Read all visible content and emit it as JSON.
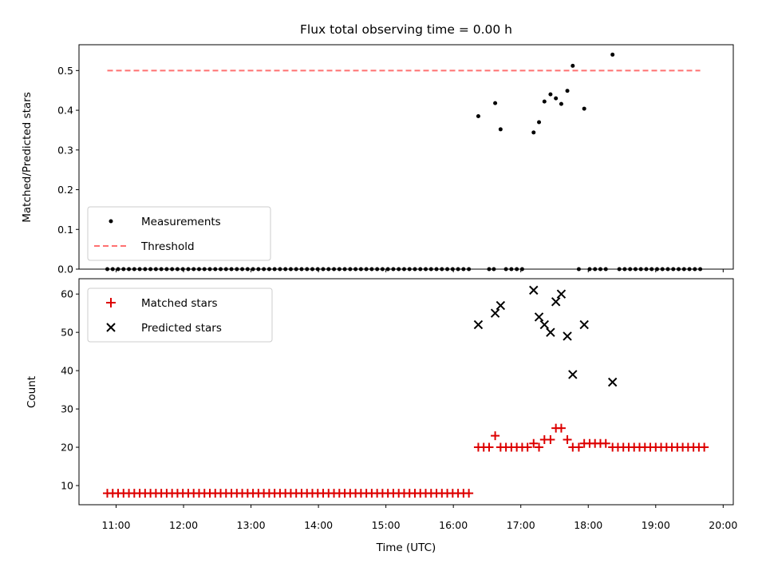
{
  "figure": {
    "title": "Flux total observing time = 0.00 h",
    "xlabel": "Time (UTC)",
    "x_tick_labels": [
      "11:00",
      "12:00",
      "13:00",
      "14:00",
      "15:00",
      "16:00",
      "17:00",
      "18:00",
      "19:00",
      "20:00"
    ]
  },
  "chart_data": [
    {
      "type": "scatter",
      "ylabel": "Matched/Predicted stars",
      "ylim": [
        0,
        0.565
      ],
      "yticks": [
        0.0,
        0.1,
        0.2,
        0.3,
        0.4,
        0.5
      ],
      "x_unit": "hours UTC",
      "xlim": [
        10.45,
        20.15
      ],
      "grid": false,
      "legend_position": "lower-left",
      "series": [
        {
          "name": "Measurements",
          "marker": "dot",
          "color": "#000000",
          "points": [
            [
              10.87,
              0
            ],
            [
              10.95,
              0
            ],
            [
              11.03,
              0
            ],
            [
              11.11,
              0
            ],
            [
              11.19,
              0
            ],
            [
              11.27,
              0
            ],
            [
              11.35,
              0
            ],
            [
              11.43,
              0
            ],
            [
              11.51,
              0
            ],
            [
              11.59,
              0
            ],
            [
              11.67,
              0
            ],
            [
              11.75,
              0
            ],
            [
              11.83,
              0
            ],
            [
              11.91,
              0
            ],
            [
              11.99,
              0
            ],
            [
              12.07,
              0
            ],
            [
              12.15,
              0
            ],
            [
              12.23,
              0
            ],
            [
              12.31,
              0
            ],
            [
              12.39,
              0
            ],
            [
              12.47,
              0
            ],
            [
              12.55,
              0
            ],
            [
              12.63,
              0
            ],
            [
              12.71,
              0
            ],
            [
              12.79,
              0
            ],
            [
              12.87,
              0
            ],
            [
              12.95,
              0
            ],
            [
              13.03,
              0
            ],
            [
              13.11,
              0
            ],
            [
              13.19,
              0
            ],
            [
              13.27,
              0
            ],
            [
              13.35,
              0
            ],
            [
              13.43,
              0
            ],
            [
              13.51,
              0
            ],
            [
              13.59,
              0
            ],
            [
              13.67,
              0
            ],
            [
              13.75,
              0
            ],
            [
              13.83,
              0
            ],
            [
              13.91,
              0
            ],
            [
              13.99,
              0
            ],
            [
              14.07,
              0
            ],
            [
              14.15,
              0
            ],
            [
              14.23,
              0
            ],
            [
              14.31,
              0
            ],
            [
              14.39,
              0
            ],
            [
              14.47,
              0
            ],
            [
              14.55,
              0
            ],
            [
              14.63,
              0
            ],
            [
              14.71,
              0
            ],
            [
              14.79,
              0
            ],
            [
              14.87,
              0
            ],
            [
              14.95,
              0
            ],
            [
              15.03,
              0
            ],
            [
              15.11,
              0
            ],
            [
              15.19,
              0
            ],
            [
              15.27,
              0
            ],
            [
              15.35,
              0
            ],
            [
              15.43,
              0
            ],
            [
              15.51,
              0
            ],
            [
              15.59,
              0
            ],
            [
              15.67,
              0
            ],
            [
              15.75,
              0
            ],
            [
              15.83,
              0
            ],
            [
              15.91,
              0
            ],
            [
              15.99,
              0
            ],
            [
              16.07,
              0
            ],
            [
              16.15,
              0
            ],
            [
              16.23,
              0
            ],
            [
              16.37,
              0.385
            ],
            [
              16.53,
              0
            ],
            [
              16.6,
              0
            ],
            [
              16.62,
              0.418
            ],
            [
              16.7,
              0.352
            ],
            [
              16.78,
              0
            ],
            [
              16.86,
              0
            ],
            [
              16.94,
              0
            ],
            [
              17.02,
              0
            ],
            [
              17.19,
              0.344
            ],
            [
              17.27,
              0.37
            ],
            [
              17.35,
              0.422
            ],
            [
              17.44,
              0.44
            ],
            [
              17.52,
              0.43
            ],
            [
              17.6,
              0.416
            ],
            [
              17.69,
              0.449
            ],
            [
              17.77,
              0.512
            ],
            [
              17.86,
              0
            ],
            [
              17.94,
              0.404
            ],
            [
              18.02,
              0
            ],
            [
              18.1,
              0
            ],
            [
              18.18,
              0
            ],
            [
              18.26,
              0
            ],
            [
              18.36,
              0.54
            ],
            [
              18.46,
              0
            ],
            [
              18.54,
              0
            ],
            [
              18.62,
              0
            ],
            [
              18.7,
              0
            ],
            [
              18.78,
              0
            ],
            [
              18.86,
              0
            ],
            [
              18.94,
              0
            ],
            [
              19.02,
              0
            ],
            [
              19.1,
              0
            ],
            [
              19.18,
              0
            ],
            [
              19.26,
              0
            ],
            [
              19.34,
              0
            ],
            [
              19.42,
              0
            ],
            [
              19.5,
              0
            ],
            [
              19.58,
              0
            ],
            [
              19.66,
              0
            ]
          ]
        },
        {
          "name": "Threshold",
          "marker": "dashed-line",
          "color": "#ff7070",
          "points": [
            [
              10.87,
              0.5
            ],
            [
              19.66,
              0.5
            ]
          ]
        }
      ]
    },
    {
      "type": "scatter",
      "ylabel": "Count",
      "ylim": [
        5,
        64
      ],
      "yticks": [
        10,
        20,
        30,
        40,
        50,
        60
      ],
      "x_unit": "hours UTC",
      "xlim": [
        10.45,
        20.15
      ],
      "grid": false,
      "legend_position": "upper-left",
      "series": [
        {
          "name": "Matched stars",
          "marker": "plus",
          "color": "#dd0000",
          "points": [
            [
              10.87,
              8
            ],
            [
              10.95,
              8
            ],
            [
              11.03,
              8
            ],
            [
              11.11,
              8
            ],
            [
              11.19,
              8
            ],
            [
              11.27,
              8
            ],
            [
              11.35,
              8
            ],
            [
              11.43,
              8
            ],
            [
              11.51,
              8
            ],
            [
              11.59,
              8
            ],
            [
              11.67,
              8
            ],
            [
              11.75,
              8
            ],
            [
              11.83,
              8
            ],
            [
              11.91,
              8
            ],
            [
              11.99,
              8
            ],
            [
              12.07,
              8
            ],
            [
              12.15,
              8
            ],
            [
              12.23,
              8
            ],
            [
              12.31,
              8
            ],
            [
              12.39,
              8
            ],
            [
              12.47,
              8
            ],
            [
              12.55,
              8
            ],
            [
              12.63,
              8
            ],
            [
              12.71,
              8
            ],
            [
              12.79,
              8
            ],
            [
              12.87,
              8
            ],
            [
              12.95,
              8
            ],
            [
              13.03,
              8
            ],
            [
              13.11,
              8
            ],
            [
              13.19,
              8
            ],
            [
              13.27,
              8
            ],
            [
              13.35,
              8
            ],
            [
              13.43,
              8
            ],
            [
              13.51,
              8
            ],
            [
              13.59,
              8
            ],
            [
              13.67,
              8
            ],
            [
              13.75,
              8
            ],
            [
              13.83,
              8
            ],
            [
              13.91,
              8
            ],
            [
              13.99,
              8
            ],
            [
              14.07,
              8
            ],
            [
              14.15,
              8
            ],
            [
              14.23,
              8
            ],
            [
              14.31,
              8
            ],
            [
              14.39,
              8
            ],
            [
              14.47,
              8
            ],
            [
              14.55,
              8
            ],
            [
              14.63,
              8
            ],
            [
              14.71,
              8
            ],
            [
              14.79,
              8
            ],
            [
              14.87,
              8
            ],
            [
              14.95,
              8
            ],
            [
              15.03,
              8
            ],
            [
              15.11,
              8
            ],
            [
              15.19,
              8
            ],
            [
              15.27,
              8
            ],
            [
              15.35,
              8
            ],
            [
              15.43,
              8
            ],
            [
              15.51,
              8
            ],
            [
              15.59,
              8
            ],
            [
              15.67,
              8
            ],
            [
              15.75,
              8
            ],
            [
              15.83,
              8
            ],
            [
              15.91,
              8
            ],
            [
              15.99,
              8
            ],
            [
              16.07,
              8
            ],
            [
              16.15,
              8
            ],
            [
              16.23,
              8
            ],
            [
              16.37,
              20
            ],
            [
              16.45,
              20
            ],
            [
              16.53,
              20
            ],
            [
              16.62,
              23
            ],
            [
              16.7,
              20
            ],
            [
              16.78,
              20
            ],
            [
              16.86,
              20
            ],
            [
              16.94,
              20
            ],
            [
              17.02,
              20
            ],
            [
              17.1,
              20
            ],
            [
              17.19,
              21
            ],
            [
              17.27,
              20
            ],
            [
              17.35,
              22
            ],
            [
              17.44,
              22
            ],
            [
              17.52,
              25
            ],
            [
              17.6,
              25
            ],
            [
              17.69,
              22
            ],
            [
              17.77,
              20
            ],
            [
              17.86,
              20
            ],
            [
              17.94,
              21
            ],
            [
              18.02,
              21
            ],
            [
              18.1,
              21
            ],
            [
              18.18,
              21
            ],
            [
              18.26,
              21
            ],
            [
              18.36,
              20
            ],
            [
              18.44,
              20
            ],
            [
              18.52,
              20
            ],
            [
              18.6,
              20
            ],
            [
              18.68,
              20
            ],
            [
              18.76,
              20
            ],
            [
              18.84,
              20
            ],
            [
              18.92,
              20
            ],
            [
              19.0,
              20
            ],
            [
              19.08,
              20
            ],
            [
              19.16,
              20
            ],
            [
              19.24,
              20
            ],
            [
              19.32,
              20
            ],
            [
              19.4,
              20
            ],
            [
              19.48,
              20
            ],
            [
              19.56,
              20
            ],
            [
              19.64,
              20
            ],
            [
              19.72,
              20
            ]
          ]
        },
        {
          "name": "Predicted stars",
          "marker": "x",
          "color": "#000000",
          "points": [
            [
              16.37,
              52
            ],
            [
              16.62,
              55
            ],
            [
              16.7,
              57
            ],
            [
              17.19,
              61
            ],
            [
              17.27,
              54
            ],
            [
              17.35,
              52
            ],
            [
              17.44,
              50
            ],
            [
              17.52,
              58
            ],
            [
              17.6,
              60
            ],
            [
              17.69,
              49
            ],
            [
              17.77,
              39
            ],
            [
              17.94,
              52
            ],
            [
              18.36,
              37
            ]
          ]
        }
      ]
    }
  ]
}
